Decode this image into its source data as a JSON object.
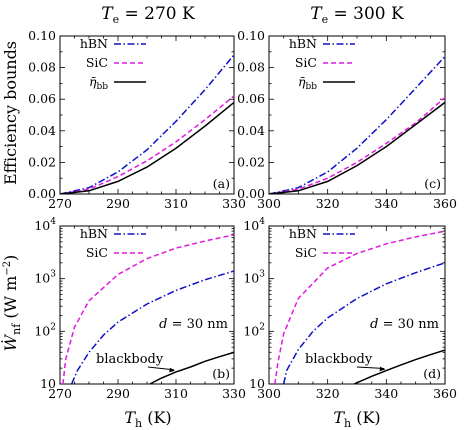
{
  "figure": {
    "title_left": "T_e = 270 K",
    "title_right": "T_e = 300 K",
    "ylabel_top": "Efficiency bounds",
    "ylabel_bottom": "Ẇ_nf (W m⁻²)",
    "xlabel": "T_h (K)"
  },
  "colors": {
    "hbn": "#1010c8",
    "sic": "#e018e0",
    "blackbody": "#000000"
  },
  "chart_data": [
    {
      "id": "a",
      "type": "line",
      "panel_label": "(a)",
      "title": "T_e = 270 K",
      "ylabel": "Efficiency bounds",
      "xlabel": "",
      "xlim": [
        270,
        330
      ],
      "ylim": [
        0,
        0.1
      ],
      "xticks": [
        270,
        290,
        310,
        330
      ],
      "yticks": [
        0.0,
        0.02,
        0.04,
        0.06,
        0.08,
        0.1
      ],
      "ytick_labels": [
        "0.00",
        "0.02",
        "0.04",
        "0.06",
        "0.08",
        "0.10"
      ],
      "legend": [
        "hBN",
        "SiC",
        "η̄_bb"
      ],
      "series": [
        {
          "name": "hBN",
          "style": "dashdot",
          "x": [
            270,
            280,
            290,
            300,
            310,
            320,
            330
          ],
          "values": [
            0.0,
            0.004,
            0.014,
            0.028,
            0.046,
            0.066,
            0.088
          ]
        },
        {
          "name": "SiC",
          "style": "dashed",
          "x": [
            270,
            280,
            290,
            300,
            310,
            320,
            330
          ],
          "values": [
            0.0,
            0.003,
            0.011,
            0.021,
            0.033,
            0.047,
            0.062
          ]
        },
        {
          "name": "η̄_bb",
          "style": "solid",
          "x": [
            270,
            280,
            290,
            300,
            310,
            320,
            330
          ],
          "values": [
            0.0,
            0.002,
            0.008,
            0.017,
            0.029,
            0.043,
            0.058
          ]
        }
      ]
    },
    {
      "id": "c",
      "type": "line",
      "panel_label": "(c)",
      "title": "T_e = 300 K",
      "ylabel": "",
      "xlabel": "",
      "xlim": [
        300,
        360
      ],
      "ylim": [
        0,
        0.1
      ],
      "xticks": [
        300,
        320,
        340,
        360
      ],
      "yticks": [
        0.0,
        0.02,
        0.04,
        0.06,
        0.08,
        0.1
      ],
      "ytick_labels": [
        "0.00",
        "0.02",
        "0.04",
        "0.06",
        "0.08",
        "0.10"
      ],
      "legend": [
        "hBN",
        "SiC",
        "η̄_bb"
      ],
      "series": [
        {
          "name": "hBN",
          "style": "dashdot",
          "x": [
            300,
            310,
            320,
            330,
            340,
            350,
            360
          ],
          "values": [
            0.0,
            0.004,
            0.014,
            0.029,
            0.047,
            0.067,
            0.087
          ]
        },
        {
          "name": "SiC",
          "style": "dashed",
          "x": [
            300,
            310,
            320,
            330,
            340,
            350,
            360
          ],
          "values": [
            0.0,
            0.003,
            0.01,
            0.02,
            0.032,
            0.045,
            0.061
          ]
        },
        {
          "name": "η̄_bb",
          "style": "solid",
          "x": [
            300,
            310,
            320,
            330,
            340,
            350,
            360
          ],
          "values": [
            0.0,
            0.002,
            0.008,
            0.018,
            0.03,
            0.044,
            0.058
          ]
        }
      ]
    },
    {
      "id": "b",
      "type": "line",
      "panel_label": "(b)",
      "ylabel": "Ẇ_nf (W m⁻²)",
      "xlabel": "T_h (K)",
      "xlim": [
        270,
        330
      ],
      "ylim": [
        10,
        10000
      ],
      "yscale": "log",
      "xticks": [
        270,
        290,
        310,
        330
      ],
      "yticks": [
        10,
        100,
        1000,
        10000
      ],
      "ytick_labels": [
        "10",
        "10²",
        "10³",
        "10⁴"
      ],
      "legend": [
        "hBN",
        "SiC"
      ],
      "annotations": [
        "d = 30 nm",
        "blackbody"
      ],
      "series": [
        {
          "name": "hBN",
          "style": "dashdot",
          "x": [
            274,
            276,
            280,
            285,
            290,
            300,
            310,
            320,
            330
          ],
          "values": [
            10,
            18,
            40,
            85,
            150,
            330,
            600,
            950,
            1400
          ]
        },
        {
          "name": "SiC",
          "style": "dashed",
          "x": [
            271,
            272,
            275,
            280,
            290,
            300,
            310,
            320,
            330
          ],
          "values": [
            10,
            30,
            120,
            380,
            1200,
            2400,
            3800,
            5200,
            6800
          ]
        },
        {
          "name": "blackbody",
          "style": "solid",
          "x": [
            301,
            305,
            310,
            315,
            320,
            325,
            330
          ],
          "values": [
            10,
            13,
            17,
            21,
            27,
            33,
            40
          ]
        }
      ]
    },
    {
      "id": "d",
      "type": "line",
      "panel_label": "(d)",
      "ylabel": "",
      "xlabel": "T_h (K)",
      "xlim": [
        300,
        360
      ],
      "ylim": [
        10,
        10000
      ],
      "yscale": "log",
      "xticks": [
        300,
        320,
        340,
        360
      ],
      "yticks": [
        10,
        100,
        1000,
        10000
      ],
      "ytick_labels": [
        "10",
        "10²",
        "10³",
        "10⁴"
      ],
      "legend": [
        "hBN",
        "SiC"
      ],
      "annotations": [
        "d = 30 nm",
        "blackbody"
      ],
      "series": [
        {
          "name": "hBN",
          "style": "dashdot",
          "x": [
            305,
            306,
            310,
            315,
            320,
            330,
            340,
            350,
            360
          ],
          "values": [
            10,
            18,
            45,
            100,
            180,
            420,
            800,
            1300,
            2000
          ]
        },
        {
          "name": "SiC",
          "style": "dashed",
          "x": [
            302,
            303,
            305,
            310,
            320,
            330,
            340,
            350,
            360
          ],
          "values": [
            10,
            25,
            90,
            420,
            1600,
            3000,
            4600,
            6200,
            8000
          ]
        },
        {
          "name": "blackbody",
          "style": "solid",
          "x": [
            329,
            335,
            340,
            345,
            350,
            355,
            360
          ],
          "values": [
            10,
            14,
            18,
            23,
            29,
            36,
            44
          ]
        }
      ]
    }
  ]
}
